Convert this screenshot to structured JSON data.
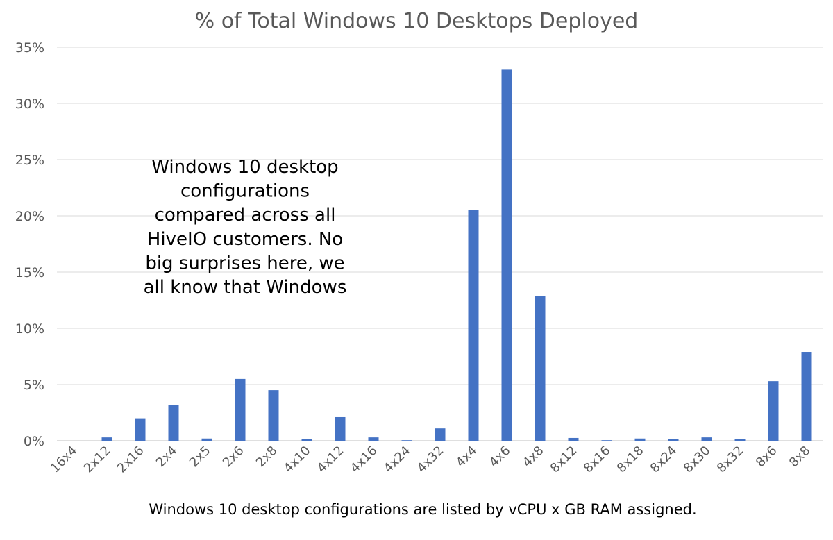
{
  "chart_data": {
    "type": "bar",
    "title": "% of Total Windows 10 Desktops Deployed",
    "xlabel": "Windows 10 desktop configurations are listed by vCPU x GB RAM assigned.",
    "ylabel": "",
    "ylim": [
      0,
      35
    ],
    "yticks": [
      "0%",
      "5%",
      "10%",
      "15%",
      "20%",
      "25%",
      "30%",
      "35%"
    ],
    "grid": true,
    "bar_color": "#4472c4",
    "categories": [
      "16x4",
      "2x12",
      "2x16",
      "2x4",
      "2x5",
      "2x6",
      "2x8",
      "4x10",
      "4x12",
      "4x16",
      "4x24",
      "4x32",
      "4x4",
      "4x6",
      "4x8",
      "8x12",
      "8x16",
      "8x18",
      "8x24",
      "8x30",
      "8x32",
      "8x6",
      "8x8"
    ],
    "values": [
      0.0,
      0.3,
      2.0,
      3.2,
      0.2,
      5.5,
      4.5,
      0.15,
      2.1,
      0.3,
      0.05,
      1.1,
      20.5,
      33.0,
      12.9,
      0.25,
      0.05,
      0.2,
      0.15,
      0.3,
      0.15,
      5.3,
      7.9
    ],
    "annotation": [
      "Windows 10 desktop",
      "configurations",
      "compared across all",
      "HiveIO customers. No",
      "big surprises here, we",
      "all know that Windows"
    ]
  }
}
